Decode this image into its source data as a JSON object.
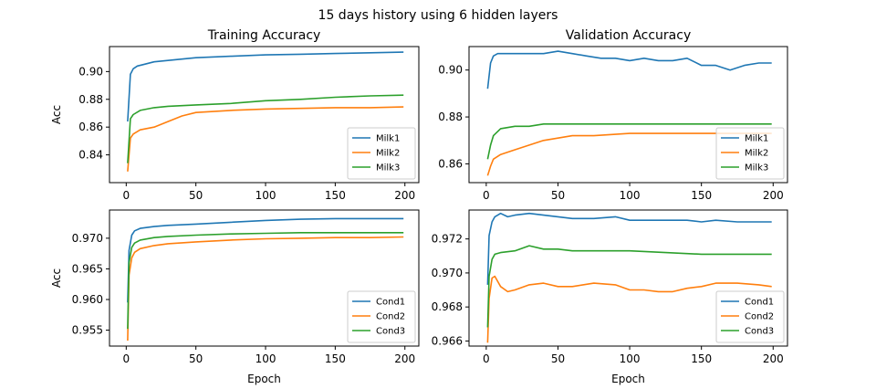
{
  "figure_title": "15 days history using 6 hidden layers",
  "colors": {
    "series1": "#1f77b4",
    "series2": "#ff7f0e",
    "series3": "#2ca02c"
  },
  "chart_data": [
    {
      "type": "line",
      "title": "Training Accuracy",
      "xlabel": "",
      "ylabel": "Acc",
      "xlim": [
        -12,
        210
      ],
      "ylim": [
        0.82,
        0.918
      ],
      "xticks": [
        0,
        50,
        100,
        150,
        200
      ],
      "yticks": [
        0.84,
        0.86,
        0.88,
        0.9
      ],
      "ytick_labels": [
        "0.84",
        "0.86",
        "0.88",
        "0.90"
      ],
      "legend_position": "lower-right",
      "series": [
        {
          "name": "Milk1",
          "color": "#1f77b4",
          "x": [
            1,
            3,
            5,
            8,
            12,
            20,
            30,
            50,
            75,
            100,
            125,
            150,
            175,
            199
          ],
          "y": [
            0.864,
            0.898,
            0.902,
            0.904,
            0.905,
            0.907,
            0.908,
            0.91,
            0.911,
            0.912,
            0.9125,
            0.913,
            0.9135,
            0.914
          ]
        },
        {
          "name": "Milk2",
          "color": "#ff7f0e",
          "x": [
            1,
            3,
            5,
            10,
            20,
            30,
            40,
            50,
            75,
            100,
            125,
            150,
            175,
            199
          ],
          "y": [
            0.828,
            0.852,
            0.855,
            0.858,
            0.86,
            0.864,
            0.868,
            0.8705,
            0.872,
            0.873,
            0.8735,
            0.874,
            0.874,
            0.8745
          ]
        },
        {
          "name": "Milk3",
          "color": "#2ca02c",
          "x": [
            1,
            3,
            5,
            10,
            20,
            30,
            50,
            75,
            100,
            125,
            150,
            175,
            199
          ],
          "y": [
            0.834,
            0.866,
            0.869,
            0.872,
            0.874,
            0.875,
            0.876,
            0.877,
            0.879,
            0.88,
            0.8815,
            0.8825,
            0.883
          ]
        }
      ]
    },
    {
      "type": "line",
      "title": "Validation Accuracy",
      "xlabel": "",
      "ylabel": "",
      "xlim": [
        -12,
        210
      ],
      "ylim": [
        0.852,
        0.91
      ],
      "xticks": [
        0,
        50,
        100,
        150,
        200
      ],
      "yticks": [
        0.86,
        0.88,
        0.9
      ],
      "ytick_labels": [
        "0.86",
        "0.88",
        "0.90"
      ],
      "legend_position": "lower-right",
      "series": [
        {
          "name": "Milk1",
          "color": "#1f77b4",
          "x": [
            1,
            3,
            5,
            8,
            12,
            20,
            30,
            40,
            50,
            60,
            70,
            80,
            90,
            100,
            110,
            120,
            130,
            140,
            150,
            160,
            170,
            180,
            190,
            199
          ],
          "y": [
            0.892,
            0.903,
            0.906,
            0.907,
            0.907,
            0.907,
            0.907,
            0.907,
            0.908,
            0.907,
            0.906,
            0.905,
            0.905,
            0.904,
            0.905,
            0.904,
            0.904,
            0.905,
            0.902,
            0.902,
            0.9,
            0.902,
            0.903,
            0.903
          ]
        },
        {
          "name": "Milk2",
          "color": "#ff7f0e",
          "x": [
            1,
            3,
            5,
            10,
            20,
            30,
            40,
            50,
            60,
            75,
            100,
            125,
            150,
            175,
            199
          ],
          "y": [
            0.855,
            0.859,
            0.862,
            0.864,
            0.866,
            0.868,
            0.87,
            0.871,
            0.872,
            0.872,
            0.873,
            0.873,
            0.873,
            0.873,
            0.873
          ]
        },
        {
          "name": "Milk3",
          "color": "#2ca02c",
          "x": [
            1,
            3,
            5,
            10,
            20,
            30,
            40,
            50,
            75,
            100,
            125,
            150,
            175,
            199
          ],
          "y": [
            0.862,
            0.868,
            0.872,
            0.875,
            0.876,
            0.876,
            0.877,
            0.877,
            0.877,
            0.877,
            0.877,
            0.877,
            0.877,
            0.877
          ]
        }
      ]
    },
    {
      "type": "line",
      "title": "",
      "xlabel": "Epoch",
      "ylabel": "Acc",
      "xlim": [
        -12,
        210
      ],
      "ylim": [
        0.9524,
        0.9746
      ],
      "xticks": [
        0,
        50,
        100,
        150,
        200
      ],
      "yticks": [
        0.955,
        0.96,
        0.965,
        0.97
      ],
      "ytick_labels": [
        "0.955",
        "0.960",
        "0.965",
        "0.970"
      ],
      "legend_position": "lower-right",
      "series": [
        {
          "name": "Cond1",
          "color": "#1f77b4",
          "x": [
            1,
            2,
            4,
            6,
            10,
            20,
            30,
            50,
            75,
            100,
            125,
            150,
            175,
            199
          ],
          "y": [
            0.9595,
            0.968,
            0.9705,
            0.9712,
            0.9716,
            0.9719,
            0.9721,
            0.9723,
            0.9726,
            0.9729,
            0.9731,
            0.9732,
            0.9732,
            0.9732
          ]
        },
        {
          "name": "Cond2",
          "color": "#ff7f0e",
          "x": [
            1,
            2,
            4,
            6,
            10,
            20,
            30,
            50,
            75,
            100,
            125,
            150,
            175,
            199
          ],
          "y": [
            0.9533,
            0.964,
            0.9668,
            0.9677,
            0.9683,
            0.9688,
            0.9691,
            0.9694,
            0.9697,
            0.9699,
            0.97,
            0.9701,
            0.9701,
            0.9702
          ]
        },
        {
          "name": "Cond3",
          "color": "#2ca02c",
          "x": [
            1,
            2,
            4,
            6,
            10,
            20,
            30,
            50,
            75,
            100,
            125,
            150,
            175,
            199
          ],
          "y": [
            0.9552,
            0.966,
            0.9685,
            0.9692,
            0.9697,
            0.9701,
            0.9703,
            0.9705,
            0.9707,
            0.9708,
            0.9709,
            0.9709,
            0.9709,
            0.9709
          ]
        }
      ]
    },
    {
      "type": "line",
      "title": "",
      "xlabel": "Epoch",
      "ylabel": "",
      "xlim": [
        -12,
        210
      ],
      "ylim": [
        0.9657,
        0.9737
      ],
      "xticks": [
        0,
        50,
        100,
        150,
        200
      ],
      "yticks": [
        0.966,
        0.968,
        0.97,
        0.972
      ],
      "ytick_labels": [
        "0.966",
        "0.968",
        "0.970",
        "0.972"
      ],
      "legend_position": "lower-right",
      "series": [
        {
          "name": "Cond1",
          "color": "#1f77b4",
          "x": [
            1,
            2,
            4,
            6,
            10,
            15,
            20,
            30,
            40,
            50,
            60,
            75,
            90,
            100,
            110,
            125,
            140,
            150,
            160,
            175,
            190,
            199
          ],
          "y": [
            0.9693,
            0.9722,
            0.973,
            0.9733,
            0.9735,
            0.9733,
            0.9734,
            0.9735,
            0.9734,
            0.9733,
            0.9732,
            0.9732,
            0.9733,
            0.9731,
            0.9731,
            0.9731,
            0.9731,
            0.973,
            0.9731,
            0.973,
            0.973,
            0.973
          ]
        },
        {
          "name": "Cond2",
          "color": "#ff7f0e",
          "x": [
            1,
            2,
            4,
            6,
            10,
            15,
            20,
            30,
            40,
            50,
            60,
            75,
            90,
            100,
            110,
            120,
            130,
            140,
            150,
            160,
            175,
            190,
            199
          ],
          "y": [
            0.9659,
            0.9685,
            0.9697,
            0.9698,
            0.9692,
            0.9689,
            0.969,
            0.9693,
            0.9694,
            0.9692,
            0.9692,
            0.9694,
            0.9693,
            0.969,
            0.969,
            0.9689,
            0.9689,
            0.9691,
            0.9692,
            0.9694,
            0.9694,
            0.9693,
            0.9692
          ]
        },
        {
          "name": "Cond3",
          "color": "#2ca02c",
          "x": [
            1,
            2,
            4,
            6,
            10,
            20,
            30,
            40,
            50,
            60,
            75,
            100,
            125,
            150,
            175,
            199
          ],
          "y": [
            0.9668,
            0.9698,
            0.9708,
            0.9711,
            0.9712,
            0.9713,
            0.9716,
            0.9714,
            0.9714,
            0.9713,
            0.9713,
            0.9713,
            0.9712,
            0.9711,
            0.9711,
            0.9711
          ]
        }
      ]
    }
  ]
}
